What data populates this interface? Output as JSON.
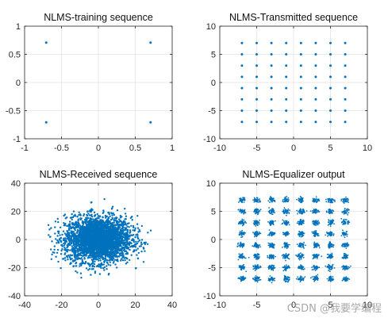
{
  "watermark": "CSDN @我要学编程",
  "chart_data": [
    {
      "type": "scatter",
      "title": "NLMS-training sequence",
      "xlim": [
        -1,
        1
      ],
      "ylim": [
        -1,
        1
      ],
      "xticks": [
        -1,
        -0.5,
        0,
        0.5,
        1
      ],
      "yticks": [
        -1,
        -0.5,
        0,
        0.5,
        1
      ],
      "grid": true,
      "color": "#0072BD",
      "points": [
        [
          -0.7071,
          0.7071
        ],
        [
          0.7071,
          0.7071
        ],
        [
          -0.7071,
          -0.7071
        ],
        [
          0.7071,
          -0.7071
        ]
      ]
    },
    {
      "type": "scatter",
      "title": "NLMS-Transmitted sequence",
      "xlim": [
        -10,
        10
      ],
      "ylim": [
        -10,
        10
      ],
      "xticks": [
        -10,
        -5,
        0,
        5,
        10
      ],
      "yticks": [
        -10,
        -5,
        0,
        5,
        10
      ],
      "grid": true,
      "color": "#0072BD",
      "grid_levels": [
        -7,
        -5,
        -3,
        -1,
        1,
        3,
        5,
        7
      ]
    },
    {
      "type": "scatter",
      "title": "NLMS-Received sequence",
      "xlim": [
        -40,
        40
      ],
      "ylim": [
        -40,
        40
      ],
      "xticks": [
        -40,
        -20,
        0,
        20,
        40
      ],
      "yticks": [
        -40,
        -20,
        0,
        20,
        40
      ],
      "grid": true,
      "color": "#0072BD",
      "cloud": {
        "center": [
          0,
          0
        ],
        "std_x": 9,
        "std_y": 8,
        "max_r": 30
      }
    },
    {
      "type": "scatter",
      "title": "NLMS-Equalizer output",
      "xlim": [
        -10,
        10
      ],
      "ylim": [
        -10,
        10
      ],
      "xticks": [
        -10,
        -5,
        0,
        5,
        10
      ],
      "yticks": [
        -10,
        -5,
        0,
        5,
        10
      ],
      "grid": true,
      "color": "#0072BD",
      "grid_levels": [
        -7,
        -5,
        -3,
        -1,
        1,
        3,
        5,
        7
      ],
      "cluster_spread": 0.4
    }
  ]
}
